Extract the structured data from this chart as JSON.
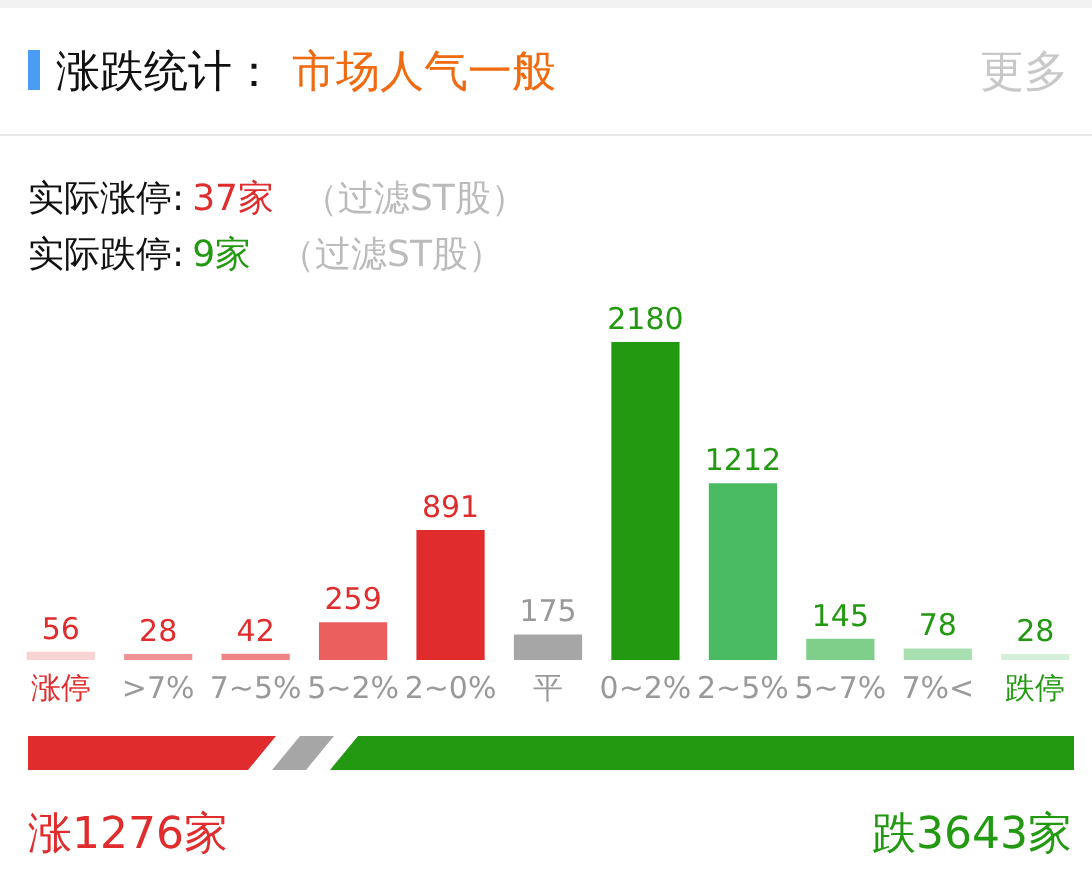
{
  "chart_data": {
    "type": "bar",
    "title": "涨跌统计：",
    "subtitle": "市场人气一般",
    "categories": [
      "涨停",
      ">7%",
      "7~5%",
      "5~2%",
      "2~0%",
      "平",
      "0~2%",
      "2~5%",
      "5~7%",
      "7%<",
      "跌停"
    ],
    "values": [
      56,
      28,
      42,
      259,
      891,
      175,
      2180,
      1212,
      145,
      78,
      28
    ],
    "colors": [
      "#f9d2d2",
      "#f29393",
      "#ef8383",
      "#ec5f5f",
      "#e02c2c",
      "#a6a6a6",
      "#229911",
      "#4bbb63",
      "#7fcf8a",
      "#a8dfb0",
      "#d5f0d8"
    ],
    "data_labels": true,
    "legend": false,
    "grid": false,
    "tick_labels": "x",
    "annotations": [
      "更多",
      "实际涨停:",
      "37家",
      "（过滤ST股）",
      "实际跌停:",
      "9家",
      "（过滤ST股）",
      "涨1276家",
      "跌3643家"
    ]
  }
}
